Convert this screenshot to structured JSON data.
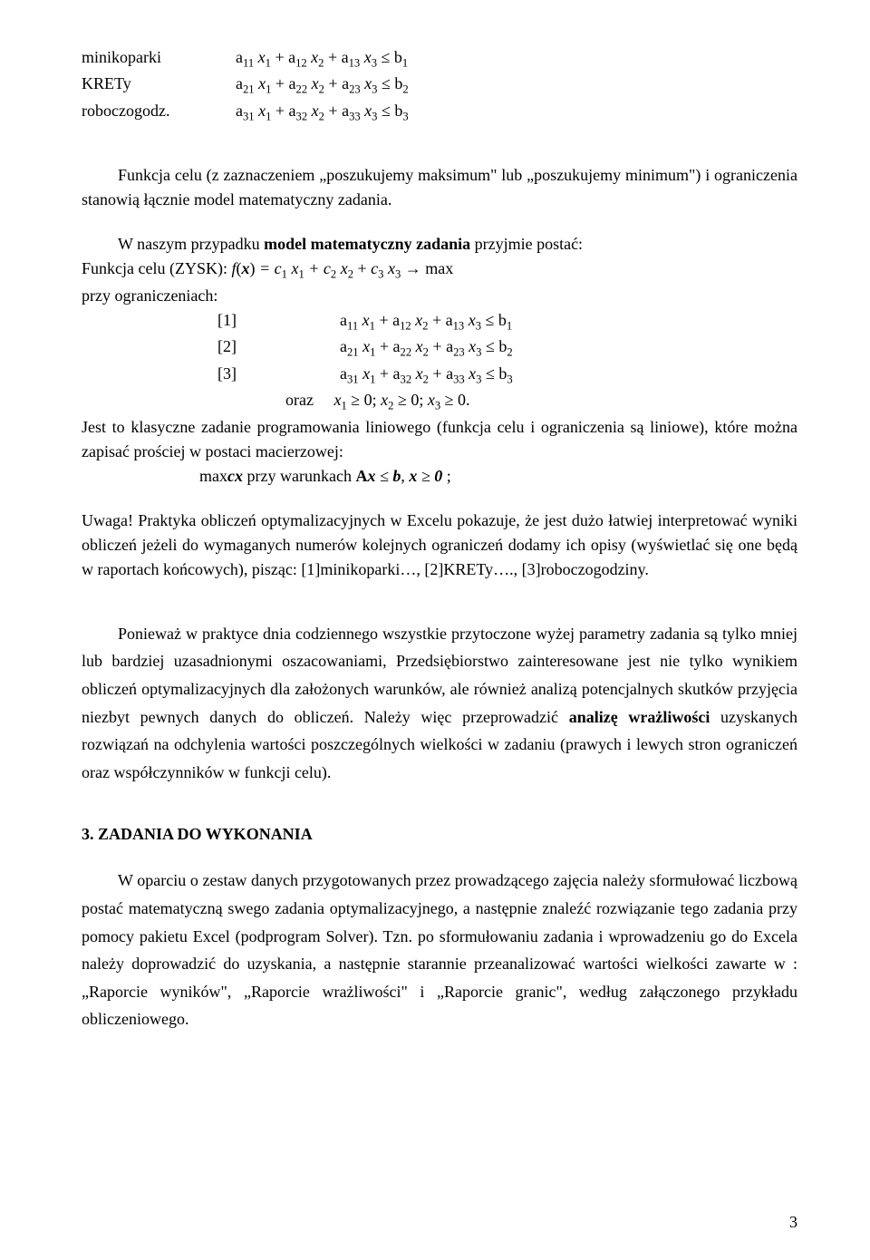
{
  "topTable": {
    "r1_label": "minikoparki",
    "r2_label": "KRETy",
    "r3_label": "roboczogodz."
  },
  "para1_a": "Funkcja celu (z zaznaczeniem „poszukujemy maksimum\" lub „poszukujemy minimum\")  i ograniczenia stanowią łącznie model matematyczny zadania.",
  "para2_a": "W naszym przypadku  ",
  "para2_b": "model matematyczny zadania",
  "para2_c": " przyjmie postać:",
  "funcLabel": " Funkcja celu (ZYSK):    ",
  "constTag1": "[1]",
  "constTag2": "[2]",
  "constTag3": "[3]",
  "przyOgr": "przy ograniczeniach:",
  "orazLabel": "oraz",
  "para3": "Jest to klasyczne zadanie programowania liniowego  (funkcja celu i ograniczenia są liniowe), które można zapisać prościej w postaci macierzowej:",
  "maxcx_a": "max",
  "maxcx_b": "cx",
  "maxcx_c": "    przy warunkach    ",
  "maxcx_d": "A",
  "maxcx_e": "x",
  "maxcx_f": " ≤ ",
  "maxcx_g": "b",
  "maxcx_h": ",   ",
  "maxcx_i": "x",
  "maxcx_j": " ≥ ",
  "maxcx_k": "0",
  "maxcx_l": " ;",
  "para4": "Uwaga!   Praktyka obliczeń optymalizacyjnych w Excelu pokazuje, że jest dużo łatwiej interpretować wyniki obliczeń jeżeli do wymaganych numerów kolejnych ograniczeń dodamy ich opisy (wyświetlać się one będą w raportach końcowych), pisząc: [1]minikoparki…, [2]KRETy…., [3]roboczogodziny.",
  "para5_a": "Ponieważ w praktyce dnia codziennego wszystkie przytoczone wyżej parametry zadania są tylko mniej lub bardziej uzasadnionymi oszacowaniami, Przedsiębiorstwo zainteresowane jest nie tylko wynikiem obliczeń optymalizacyjnych dla założonych warunków, ale również analizą potencjalnych skutków przyjęcia niezbyt pewnych danych do obliczeń. Należy więc przeprowadzić ",
  "para5_b": "analizę wrażliwości",
  "para5_c": " uzyskanych rozwiązań na odchylenia wartości poszczególnych wielkości w zadaniu (prawych i lewych stron ograniczeń oraz współczynników w funkcji celu).",
  "section3": "3. ZADANIA DO WYKONANIA",
  "para6": "W oparciu o zestaw danych przygotowanych przez prowadzącego zajęcia należy sformułować liczbową postać matematyczną swego zadania optymalizacyjnego, a następnie znaleźć rozwiązanie tego zadania przy pomocy pakietu Excel (podprogram Solver).  Tzn. po sformułowaniu zadania i wprowadzeniu go do Excela należy doprowadzić do uzyskania, a następnie starannie przeanalizować wartości wielkości zawarte w : „Raporcie wyników\", „Raporcie wrażliwości\" i „Raporcie granic\", według załączonego przykładu obliczeniowego.",
  "pageNumber": "3"
}
